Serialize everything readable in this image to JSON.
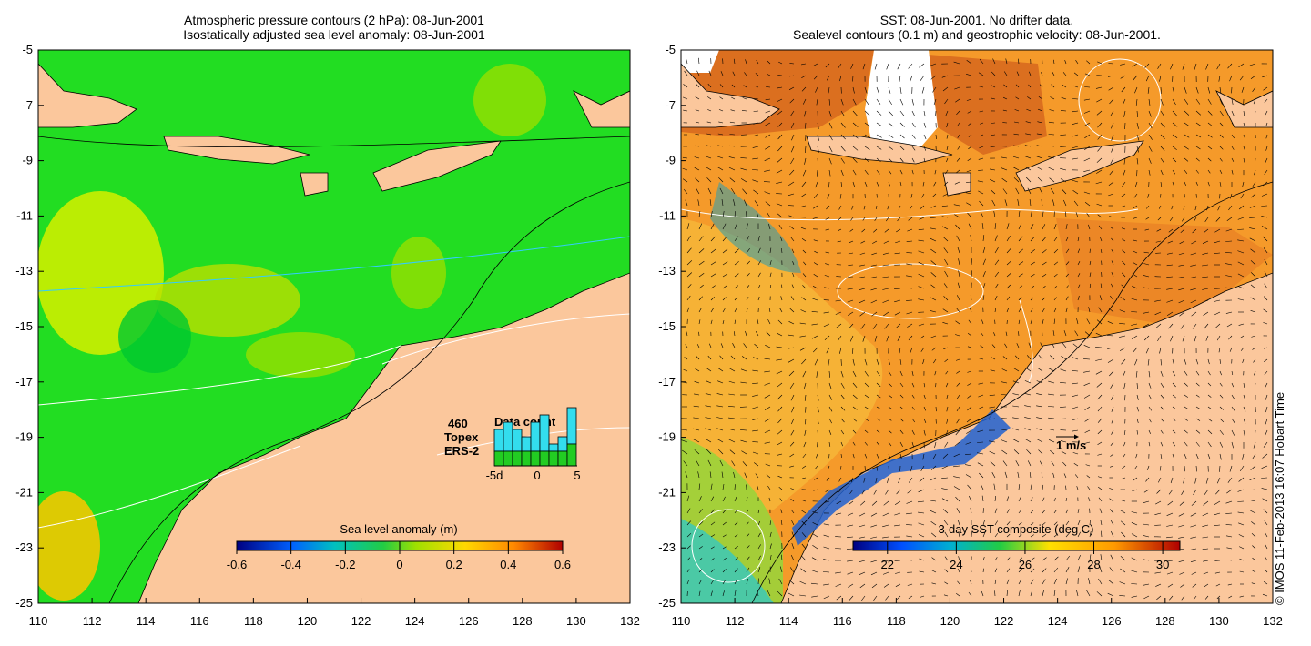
{
  "left_map": {
    "title_line1": "Atmospheric pressure contours (2 hPa): 08-Jun-2001",
    "title_line2": "Isostatically adjusted sea level anomaly: 08-Jun-2001",
    "colorbar": {
      "label": "Sea level anomaly (m)",
      "ticks": [
        "-0.6",
        "-0.4",
        "-0.2",
        "0",
        "0.2",
        "0.4",
        "0.6"
      ],
      "range": [
        -0.6,
        0.6
      ]
    },
    "data_count": {
      "total": "460",
      "title": "Data count",
      "series": [
        {
          "name": "Topex",
          "color": "#33ddee"
        },
        {
          "name": "ERS-2",
          "color": "#22cc22"
        }
      ],
      "x_ticks": [
        "-5d",
        "0",
        "5"
      ],
      "topex_values": [
        3,
        4,
        3,
        2,
        4,
        5,
        1,
        2,
        5
      ],
      "ers2_values": [
        2,
        2,
        2,
        2,
        2,
        2,
        2,
        2,
        3
      ]
    }
  },
  "right_map": {
    "title_line1": "SST: 08-Jun-2001. No drifter data.",
    "title_line2": "Sealevel contours (0.1 m) and geostrophic velocity: 08-Jun-2001.",
    "scale_arrow_label": "1 m/s",
    "colorbar": {
      "label": "3-day SST composite (deg C)",
      "ticks": [
        "22",
        "24",
        "26",
        "28",
        "30"
      ],
      "range": [
        21,
        30.5
      ]
    }
  },
  "axes": {
    "lon_ticks": [
      110,
      112,
      114,
      116,
      118,
      120,
      122,
      124,
      126,
      128,
      130,
      132
    ],
    "lat_ticks": [
      -5,
      -7,
      -9,
      -11,
      -13,
      -15,
      -17,
      -19,
      -21,
      -23,
      -25
    ],
    "lon_range": [
      110,
      132
    ],
    "lat_range": [
      -25,
      -5
    ]
  },
  "colors": {
    "land": "#fbc79c",
    "sla_base": "#22dd22",
    "sst_base": "#f59a2a",
    "coastline": "#000000"
  },
  "credit": "© IMOS 11-Feb-2013 16:07 Hobart Time"
}
